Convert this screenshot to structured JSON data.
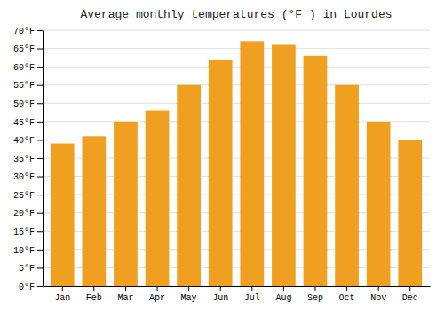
{
  "chart_data": {
    "type": "bar",
    "title": "Average monthly temperatures (°F ) in Lourdes",
    "categories": [
      "Jan",
      "Feb",
      "Mar",
      "Apr",
      "May",
      "Jun",
      "Jul",
      "Aug",
      "Sep",
      "Oct",
      "Nov",
      "Dec"
    ],
    "values": [
      39,
      41,
      45,
      48,
      55,
      62,
      67,
      66,
      63,
      55,
      45,
      40
    ],
    "color": "#F0A020",
    "ylim": [
      0,
      70
    ],
    "yticks": [
      {
        "value": 0,
        "label": "0°F"
      },
      {
        "value": 5,
        "label": "5°F"
      },
      {
        "value": 10,
        "label": "10°F"
      },
      {
        "value": 15,
        "label": "15°F"
      },
      {
        "value": 20,
        "label": "20°F"
      },
      {
        "value": 25,
        "label": "25°F"
      },
      {
        "value": 30,
        "label": "30°F"
      },
      {
        "value": 35,
        "label": "35°F"
      },
      {
        "value": 40,
        "label": "40°F"
      },
      {
        "value": 45,
        "label": "45°F"
      },
      {
        "value": 50,
        "label": "50°F"
      },
      {
        "value": 55,
        "label": "55°F"
      },
      {
        "value": 60,
        "label": "60°F"
      },
      {
        "value": 65,
        "label": "65°F"
      },
      {
        "value": 70,
        "label": "70°F"
      }
    ],
    "grid": true
  }
}
